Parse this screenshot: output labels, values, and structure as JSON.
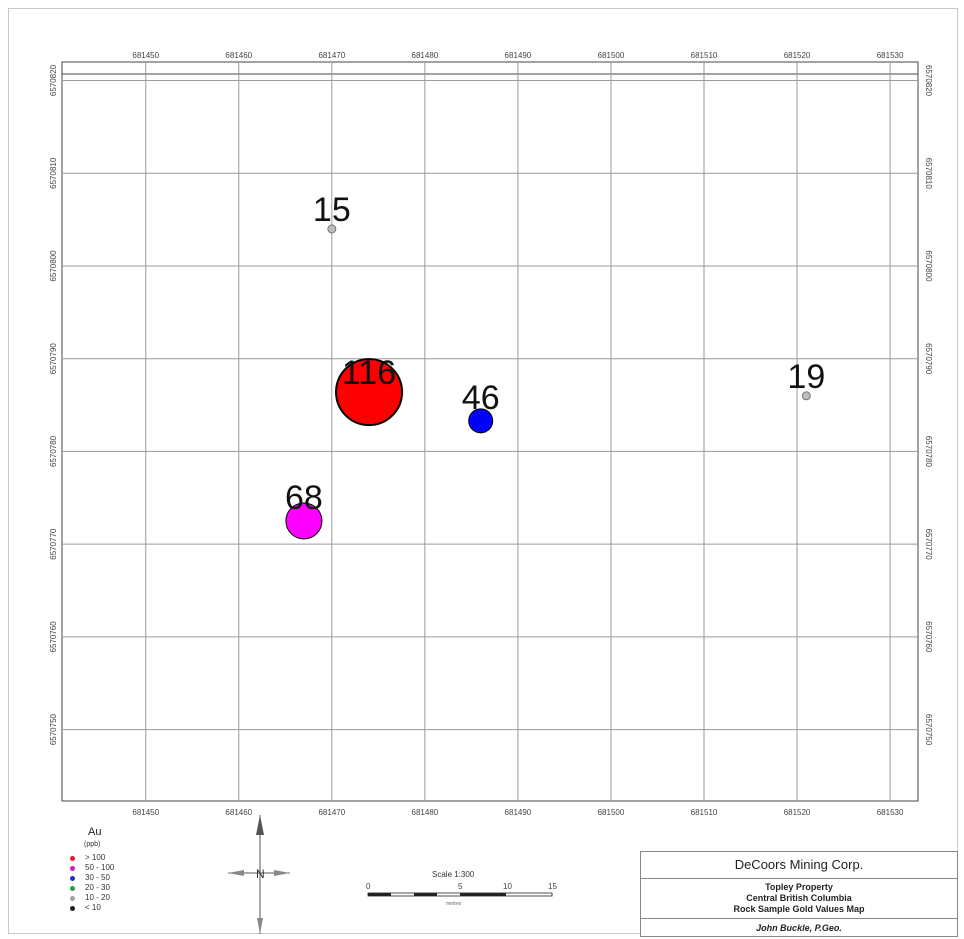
{
  "map": {
    "eastings": [
      "681450",
      "681460",
      "681470",
      "681480",
      "681490",
      "681500",
      "681510",
      "681520",
      "681530"
    ],
    "northings": [
      "6570820",
      "6570810",
      "6570800",
      "6570790",
      "6570780",
      "6570770",
      "6570760",
      "6570750"
    ],
    "easting_range": [
      681441,
      681533
    ],
    "northing_range": [
      6570742.3,
      6570822
    ],
    "samples": [
      {
        "label": "15",
        "easting": 681470.0,
        "northing": 6570804.0,
        "au_class": "10 - 20",
        "color": "#bdbdbd"
      },
      {
        "label": "116",
        "easting": 681474.0,
        "northing": 6570786.4,
        "au_class": "> 100",
        "color": "#ff0000"
      },
      {
        "label": "46",
        "easting": 681486.0,
        "northing": 6570783.3,
        "au_class": "30 - 50",
        "color": "#0000ff"
      },
      {
        "label": "68",
        "easting": 681467.0,
        "northing": 6570772.5,
        "au_class": "50 - 100",
        "color": "#ff00ff"
      },
      {
        "label": "19",
        "easting": 681521.0,
        "northing": 6570786.0,
        "au_class": "10 - 20",
        "color": "#bdbdbd"
      }
    ]
  },
  "legend": {
    "title": "Au",
    "unit": "(ppb)",
    "items": [
      {
        "text": "> 100",
        "color": "#e02020"
      },
      {
        "text": "50 - 100",
        "color": "#c020c0"
      },
      {
        "text": "30 - 50",
        "color": "#2030c0"
      },
      {
        "text": "20 - 30",
        "color": "#20a040"
      },
      {
        "text": "10 - 20",
        "color": "#a0a0a0"
      },
      {
        "text": "< 10",
        "color": "#202020"
      }
    ]
  },
  "north_arrow": {
    "label": "N"
  },
  "scale": {
    "title": "Scale 1:300",
    "ticks": [
      "0",
      "",
      "5",
      "10",
      "15"
    ],
    "subtitle": "metres"
  },
  "titleblock": {
    "company": "DeCoors Mining Corp.",
    "project_lines": [
      "Topley Property",
      "Central British Columbia",
      "Rock Sample Gold Values Map"
    ],
    "author": "John Buckle, P.Geo."
  }
}
